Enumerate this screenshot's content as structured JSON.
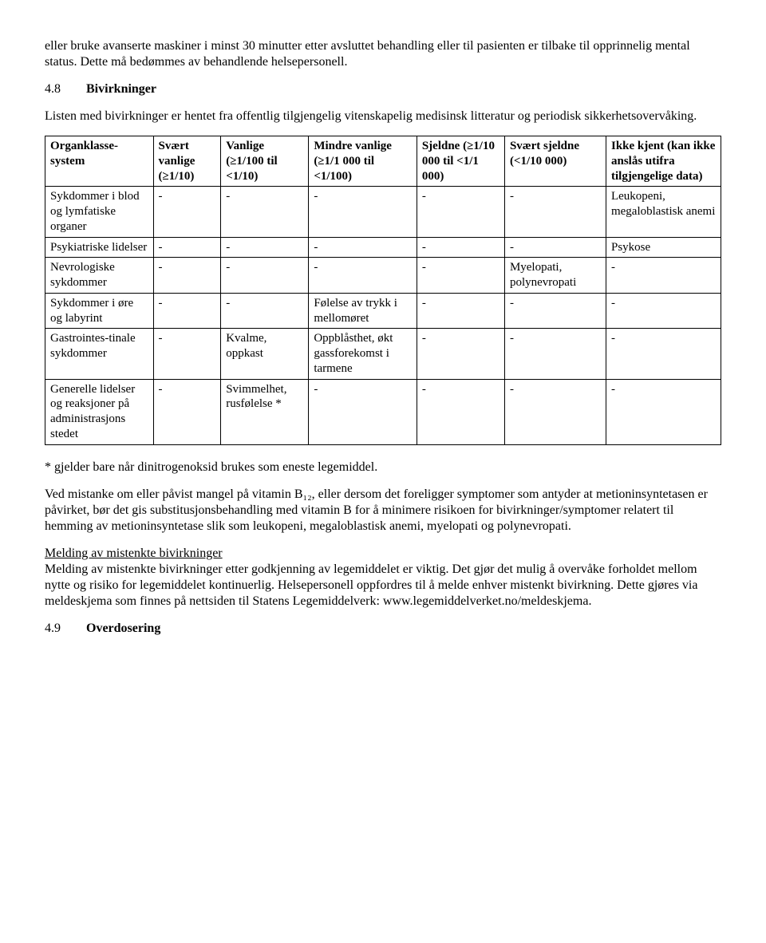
{
  "intro_paragraph": "eller bruke avanserte maskiner i minst 30 minutter etter avsluttet behandling eller til pasienten er tilbake til opprinnelig mental status. Dette må bedømmes av behandlende helsepersonell.",
  "section48": {
    "num": "4.8",
    "title": "Bivirkninger",
    "intro": "Listen med bivirkninger er hentet fra offentlig tilgjengelig vitenskapelig medisinsk litteratur og periodisk sikkerhetsovervåking."
  },
  "table": {
    "columns": [
      "Organklasse-system",
      "Svært vanlige (≥1/10)",
      "Vanlige (≥1/100 til <1/10)",
      "Mindre vanlige (≥1/1 000 til <1/100)",
      "Sjeldne (≥1/10 000 til <1/1 000)",
      "Svært sjeldne (<1/10 000)",
      "Ikke kjent (kan ikke anslås utifra tilgjengelige data)"
    ],
    "rows": [
      [
        "Sykdommer i blod og lymfatiske organer",
        "-",
        "-",
        "-",
        "-",
        "-",
        "Leukopeni, megaloblastisk anemi"
      ],
      [
        "Psykiatriske lidelser",
        "-",
        "-",
        "-",
        "-",
        "-",
        "Psykose"
      ],
      [
        "Nevrologiske sykdommer",
        "-",
        "-",
        "-",
        "-",
        "Myelopati, polynevropati",
        "-"
      ],
      [
        "Sykdommer i øre og labyrint",
        "-",
        "-",
        "Følelse av trykk i mellomøret",
        "-",
        "-",
        "-"
      ],
      [
        "Gastrointes-tinale sykdommer",
        "-",
        "Kvalme, oppkast",
        "Oppblåsthet, økt gassforekomst i tarmene",
        "-",
        "-",
        "-"
      ],
      [
        "Generelle lidelser og reaksjoner på administrasjons stedet",
        "-",
        "Svimmelhet, rusfølelse *",
        "-",
        "-",
        "-",
        "-"
      ]
    ]
  },
  "footnote": "* gjelder bare når dinitrogenoksid brukes som eneste legemiddel.",
  "para_vitb": "Ved mistanke om eller påvist mangel på vitamin B₁₂, eller dersom det foreligger symptomer som antyder at metioninsyntetasen er påvirket, bør det gis substitusjonsbehandling med vitamin B for å minimere risikoen for bivirkninger/symptomer relatert til hemming av metioninsyntetase slik som leukopeni, megaloblastisk anemi, myelopati og polynevropati.",
  "report_heading": "Melding av mistenkte bivirkninger",
  "para_report": "Melding av mistenkte bivirkninger etter godkjenning av legemiddelet er viktig. Det gjør det mulig å overvåke forholdet mellom nytte og risiko for legemiddelet kontinuerlig. Helsepersonell oppfordres til å melde enhver mistenkt bivirkning. Dette gjøres via meldeskjema som finnes på nettsiden til Statens Legemiddelverk: www.legemiddelverket.no/meldeskjema.",
  "section49": {
    "num": "4.9",
    "title": "Overdosering"
  }
}
